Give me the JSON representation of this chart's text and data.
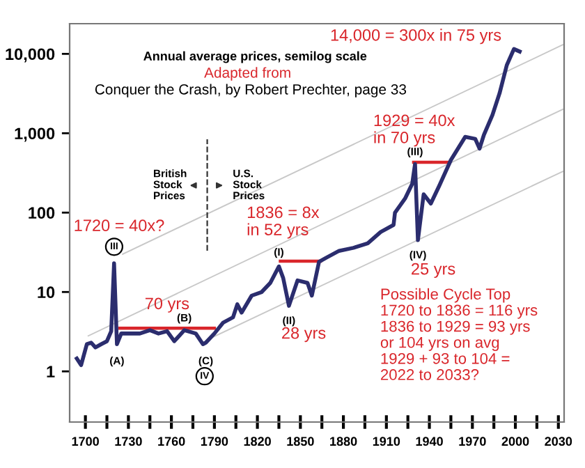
{
  "chart_data": {
    "type": "line",
    "title": "Annual average prices, semilog scale",
    "subtitle": "Adapted from",
    "log": "y",
    "xlim": [
      1689,
      2034
    ],
    "ylim": [
      0.23,
      24000
    ],
    "xticks": [
      1700,
      {
        "value": 1715,
        "label": null
      },
      1730,
      {
        "value": 1745,
        "label": null
      },
      1760,
      {
        "value": 1775,
        "label": null
      },
      1790,
      {
        "value": 1805,
        "label": null
      },
      1820,
      {
        "value": 1835,
        "label": null
      },
      1850,
      {
        "value": 1865,
        "label": null
      },
      1880,
      {
        "value": 1895,
        "label": null
      },
      1910,
      {
        "value": 1925,
        "label": null
      },
      1940,
      {
        "value": 1955,
        "label": null
      },
      1970,
      {
        "value": 1985,
        "label": null
      },
      2000,
      {
        "value": 2015,
        "label": null
      },
      2030
    ],
    "yticks": [
      1,
      10,
      {
        "value": 100,
        "label": "100"
      },
      {
        "value": 1000,
        "label": "1,000"
      },
      {
        "value": 10000,
        "label": "10,000"
      }
    ],
    "grid": false,
    "marker": "none",
    "line_style": "solid",
    "series": [
      {
        "color": "#2b2d6e",
        "x": [
          1694,
          1697,
          1701,
          1704,
          1707,
          1711,
          1715,
          1718,
          1720,
          1722,
          1725,
          1731,
          1738,
          1745,
          1751,
          1757,
          1762,
          1769,
          1777,
          1782,
          1784,
          1790,
          1796,
          1803,
          1806,
          1809,
          1816,
          1823,
          1829,
          1835,
          1838,
          1842,
          1848,
          1855,
          1858,
          1863,
          1868,
          1877,
          1887,
          1897,
          1906,
          1915,
          1916,
          1923,
          1928,
          1930,
          1932,
          1936,
          1941,
          1947,
          1955,
          1965,
          1972,
          1975,
          1978,
          1984,
          1989,
          1994,
          1999,
          2003
        ],
        "values": [
          1.45,
          1.2,
          2.2,
          2.3,
          2.0,
          2.2,
          2.4,
          3.2,
          23,
          2.2,
          3.0,
          3.0,
          3.0,
          3.3,
          3.0,
          3.2,
          2.4,
          3.3,
          3.0,
          2.2,
          2.3,
          3.0,
          4.1,
          4.8,
          7,
          5.5,
          9,
          10,
          13,
          21,
          15,
          6.7,
          14,
          13,
          9,
          24,
          27,
          33,
          36,
          41,
          57,
          70,
          100,
          150,
          230,
          410,
          45,
          170,
          130,
          220,
          460,
          900,
          850,
          640,
          950,
          1700,
          3200,
          7200,
          11500,
          10700
        ]
      },
      {
        "color": "#c8c8c8",
        "x": [
          1726,
          2033
        ],
        "values": [
          30,
          13000
        ]
      },
      {
        "color": "#c8c8c8",
        "x": [
          1702,
          2033
        ],
        "values": [
          2.8,
          2000
        ]
      },
      {
        "color": "#c8c8c8",
        "x": [
          1785,
          2033
        ],
        "values": [
          2.5,
          330
        ]
      },
      {
        "color": "#d9262b",
        "x": [
          1724,
          1790
        ],
        "values": [
          3.5,
          3.5
        ]
      },
      {
        "color": "#d9262b",
        "x": [
          1836,
          1864
        ],
        "values": [
          24.5,
          24.5
        ]
      },
      {
        "color": "#d9262b",
        "x": [
          1929,
          1954
        ],
        "values": [
          430,
          430
        ]
      }
    ],
    "ref_lines": [
      {
        "axis": "x",
        "value": 1785,
        "line_style": "dashed",
        "color": "#333333"
      }
    ],
    "annotations": [
      "Conquer the Crash, by Robert Prechter, page 33",
      "14,000 = 300x in 75 yrs",
      "1929 = 40x\nin 70 yrs",
      "1720 = 40x?",
      "1836 = 8x\nin 52 yrs",
      "70 yrs",
      "28 yrs",
      "25 yrs",
      "Possible Cycle Top\n1720 to 1836 = 116 yrs\n1836 to 1929 = 93 yrs\nor 104 yrs on avg\n1929 + 93 to 104 =\n2022 to 2033?",
      "British\nStock\nPrices",
      "U.S.\nStock\nPrices",
      "III",
      {
        "text": "(A)",
        "x": 1722,
        "y": 2.2
      },
      {
        "text": "(B)",
        "x": 1769,
        "y": 3.3
      },
      {
        "text": "(C)",
        "x": 1784,
        "y": 2.2
      },
      "IV",
      {
        "text": "(I)",
        "x": 1835,
        "y": 21
      },
      {
        "text": "(II)",
        "x": 1842,
        "y": 6.7
      },
      {
        "text": "(III)",
        "x": 1930,
        "y": 410
      },
      {
        "text": "(IV)",
        "x": 1932,
        "y": 45
      }
    ]
  }
}
